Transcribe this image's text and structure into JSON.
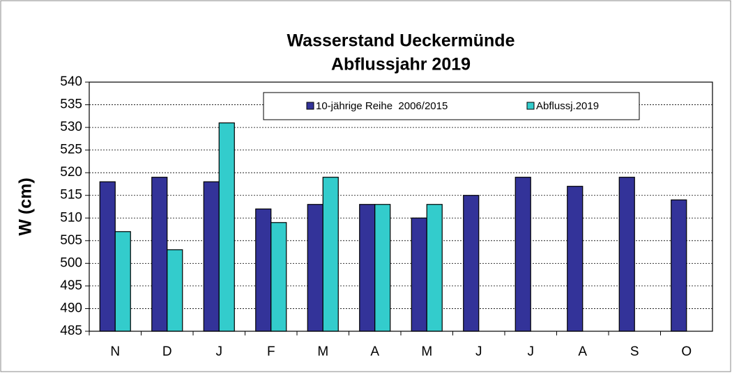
{
  "chart_data": {
    "type": "bar",
    "title": "Wasserstand Ueckermünde",
    "subtitle": "Abflussjahr 2019",
    "y_label": "W (cm)",
    "categories": [
      "N",
      "D",
      "J",
      "F",
      "M",
      "A",
      "M",
      "J",
      "J",
      "A",
      "S",
      "O"
    ],
    "series": [
      {
        "name": "10-jährige Reihe  2006/2015",
        "color": "#333399",
        "values": [
          518,
          519,
          518,
          512,
          513,
          513,
          510,
          515,
          519,
          517,
          519,
          514
        ]
      },
      {
        "name": "Abflussj.2019",
        "color": "#33cccc",
        "values": [
          507,
          503,
          531,
          509,
          519,
          513,
          513,
          null,
          null,
          null,
          null,
          null
        ]
      }
    ],
    "ylim": [
      485,
      540
    ],
    "yticks": [
      485,
      490,
      495,
      500,
      505,
      510,
      515,
      520,
      525,
      530,
      535,
      540
    ],
    "grid": true,
    "legend": "top"
  }
}
